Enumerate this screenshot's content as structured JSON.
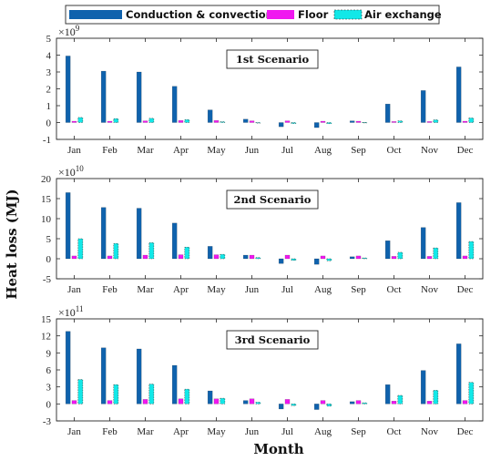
{
  "colors": {
    "conduction": "#0f62ad",
    "floor": "#f018f0",
    "air": "#12e8e8"
  },
  "legend": [
    {
      "key": "conduction",
      "label": "Conduction & convection"
    },
    {
      "key": "floor",
      "label": "Floor"
    },
    {
      "key": "air",
      "label": "Air exchange"
    }
  ],
  "ylabel": "Heat loss (MJ)",
  "xlabel": "Month",
  "chart_data": [
    {
      "type": "bar",
      "title": "1st Scenario",
      "multiplier_base": "×10",
      "multiplier_exp": "9",
      "categories": [
        "Jan",
        "Feb",
        "Mar",
        "Apr",
        "May",
        "Jun",
        "Jul",
        "Aug",
        "Sep",
        "Oct",
        "Nov",
        "Dec"
      ],
      "ylim": [
        -1,
        5
      ],
      "yticks": [
        -1,
        0,
        1,
        2,
        3,
        4,
        5
      ],
      "series": [
        {
          "name": "Conduction & convection",
          "key": "conduction",
          "values": [
            3.95,
            3.05,
            3.0,
            2.15,
            0.75,
            0.2,
            -0.25,
            -0.3,
            0.1,
            1.1,
            1.9,
            3.3
          ]
        },
        {
          "name": "Floor",
          "key": "floor",
          "values": [
            0.08,
            0.08,
            0.1,
            0.12,
            0.12,
            0.1,
            0.1,
            0.08,
            0.08,
            0.06,
            0.06,
            0.08
          ]
        },
        {
          "name": "Air exchange",
          "key": "air",
          "values": [
            0.3,
            0.23,
            0.25,
            0.17,
            0.05,
            -0.02,
            -0.06,
            -0.07,
            0.01,
            0.1,
            0.16,
            0.27
          ]
        }
      ]
    },
    {
      "type": "bar",
      "title": "2nd Scenario",
      "multiplier_base": "×10",
      "multiplier_exp": "10",
      "categories": [
        "Jan",
        "Feb",
        "Mar",
        "Apr",
        "May",
        "Jun",
        "Jul",
        "Aug",
        "Sep",
        "Oct",
        "Nov",
        "Dec"
      ],
      "ylim": [
        -5,
        20
      ],
      "yticks": [
        -5,
        0,
        5,
        10,
        15,
        20
      ],
      "series": [
        {
          "name": "Conduction & convection",
          "key": "conduction",
          "values": [
            16.5,
            12.8,
            12.6,
            8.9,
            3.1,
            0.9,
            -1.2,
            -1.4,
            0.5,
            4.5,
            7.8,
            14.0
          ]
        },
        {
          "name": "Floor",
          "key": "floor",
          "values": [
            0.7,
            0.7,
            0.9,
            1.0,
            1.0,
            0.9,
            0.9,
            0.7,
            0.7,
            0.6,
            0.6,
            0.7
          ]
        },
        {
          "name": "Air exchange",
          "key": "air",
          "values": [
            5.0,
            3.8,
            4.0,
            2.9,
            1.1,
            0.3,
            -0.4,
            -0.5,
            0.2,
            1.6,
            2.7,
            4.3
          ]
        }
      ]
    },
    {
      "type": "bar",
      "title": "3rd Scenario",
      "multiplier_base": "×10",
      "multiplier_exp": "11",
      "categories": [
        "Jan",
        "Feb",
        "Mar",
        "Apr",
        "May",
        "Jun",
        "Jul",
        "Aug",
        "Sep",
        "Oct",
        "Nov",
        "Dec"
      ],
      "ylim": [
        -3,
        15
      ],
      "yticks": [
        -3,
        0,
        3,
        6,
        9,
        12,
        15
      ],
      "series": [
        {
          "name": "Conduction & convection",
          "key": "conduction",
          "values": [
            12.8,
            9.9,
            9.7,
            6.8,
            2.3,
            0.6,
            -0.9,
            -1.0,
            0.4,
            3.4,
            5.9,
            10.6
          ]
        },
        {
          "name": "Floor",
          "key": "floor",
          "values": [
            0.6,
            0.6,
            0.8,
            0.9,
            0.9,
            0.9,
            0.8,
            0.6,
            0.6,
            0.5,
            0.5,
            0.6
          ]
        },
        {
          "name": "Air exchange",
          "key": "air",
          "values": [
            4.3,
            3.4,
            3.5,
            2.6,
            1.0,
            0.3,
            -0.3,
            -0.4,
            0.2,
            1.5,
            2.4,
            3.8
          ]
        }
      ]
    }
  ]
}
